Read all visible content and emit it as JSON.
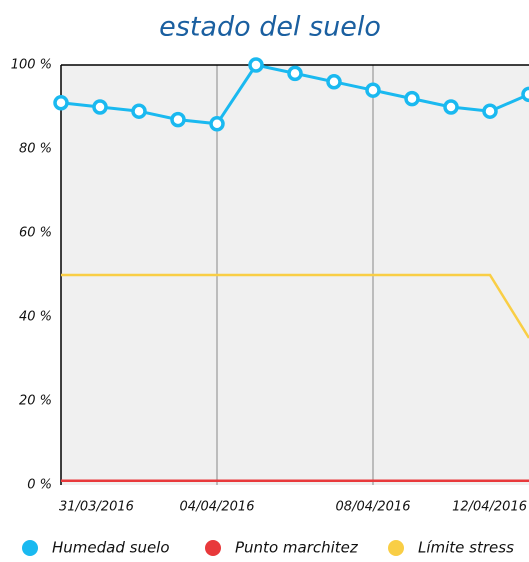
{
  "chart_data": {
    "type": "line",
    "title": "estado del suelo",
    "x": [
      "31/03/2016",
      "01/04/2016",
      "02/04/2016",
      "03/04/2016",
      "04/04/2016",
      "05/04/2016",
      "06/04/2016",
      "07/04/2016",
      "08/04/2016",
      "09/04/2016",
      "10/04/2016",
      "11/04/2016",
      "12/04/2016"
    ],
    "xticks": [
      "31/03/2016",
      "04/04/2016",
      "08/04/2016",
      "12/04/2016"
    ],
    "series": [
      {
        "name": "Humedad suelo",
        "color": "#1ab9f0",
        "values": [
          91,
          90,
          89,
          87,
          86,
          100,
          98,
          96,
          94,
          92,
          90,
          89,
          93
        ],
        "markers": true
      },
      {
        "name": "Punto marchitez",
        "color": "#e8393b",
        "values": [
          1,
          1,
          1,
          1,
          1,
          1,
          1,
          1,
          1,
          1,
          1,
          1,
          1
        ],
        "markers": false
      },
      {
        "name": "Límite stress",
        "color": "#f9ce45",
        "values": [
          50,
          50,
          50,
          50,
          50,
          50,
          50,
          50,
          50,
          50,
          50,
          50,
          35
        ],
        "markers": false
      }
    ],
    "ylim": [
      0,
      100
    ],
    "yticks": [
      {
        "value": 0,
        "label": "0 %"
      },
      {
        "value": 20,
        "label": "20 %"
      },
      {
        "value": 40,
        "label": "40 %"
      },
      {
        "value": 60,
        "label": "60 %"
      },
      {
        "value": 80,
        "label": "80 %"
      },
      {
        "value": 100,
        "label": "100 %"
      }
    ],
    "grid": "x"
  }
}
